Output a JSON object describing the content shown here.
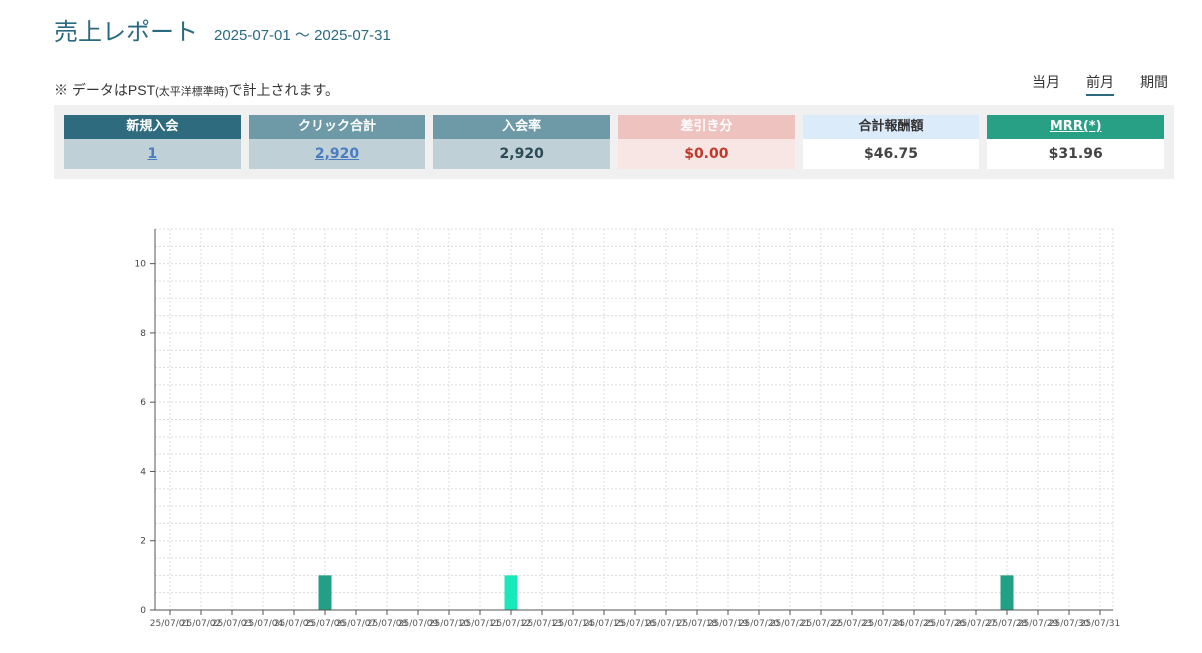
{
  "header": {
    "title": "売上レポート",
    "date_range": "2025-07-01 〜 2025-07-31"
  },
  "note": {
    "prefix": "※ データはPST",
    "tz": "(太平洋標準時)",
    "suffix": "で計上されます。"
  },
  "period_tabs": [
    {
      "label": "当月",
      "active": false
    },
    {
      "label": "前月",
      "active": true
    },
    {
      "label": "期間",
      "active": false
    }
  ],
  "summary": {
    "new_members": {
      "label": "新規入会",
      "value": "1"
    },
    "clicks": {
      "label": "クリック合計",
      "value": "2,920"
    },
    "join_rate": {
      "label": "入会率",
      "value": "2,920"
    },
    "deduction": {
      "label": "差引き分",
      "value": "$0.00"
    },
    "total_reward": {
      "label": "合計報酬額",
      "value": "$46.75"
    },
    "mrr": {
      "label": "MRR(*)",
      "value": "$31.96"
    }
  },
  "chart_data": {
    "type": "bar",
    "x": [
      "25/07/01",
      "25/07/02",
      "25/07/03",
      "25/07/04",
      "25/07/05",
      "25/07/06",
      "25/07/07",
      "25/07/08",
      "25/07/09",
      "25/07/10",
      "25/07/11",
      "25/07/12",
      "25/07/13",
      "25/07/14",
      "25/07/15",
      "25/07/16",
      "25/07/17",
      "25/07/18",
      "25/07/19",
      "25/07/20",
      "25/07/21",
      "25/07/22",
      "25/07/23",
      "25/07/24",
      "25/07/25",
      "25/07/26",
      "25/07/27",
      "25/07/28",
      "25/07/29",
      "25/07/30",
      "25/07/31"
    ],
    "values": [
      0,
      0,
      0,
      0,
      0,
      1,
      0,
      0,
      0,
      0,
      0,
      1,
      0,
      0,
      0,
      0,
      0,
      0,
      0,
      0,
      0,
      0,
      0,
      0,
      0,
      0,
      0,
      1,
      0,
      0,
      0
    ],
    "bar_colors": {
      "default": "#21a085",
      "highlight": "#19e8b8"
    },
    "highlight_index": 11,
    "ylim": [
      0,
      11
    ],
    "yticks": [
      0,
      2,
      4,
      6,
      8,
      10
    ],
    "grid": true
  }
}
